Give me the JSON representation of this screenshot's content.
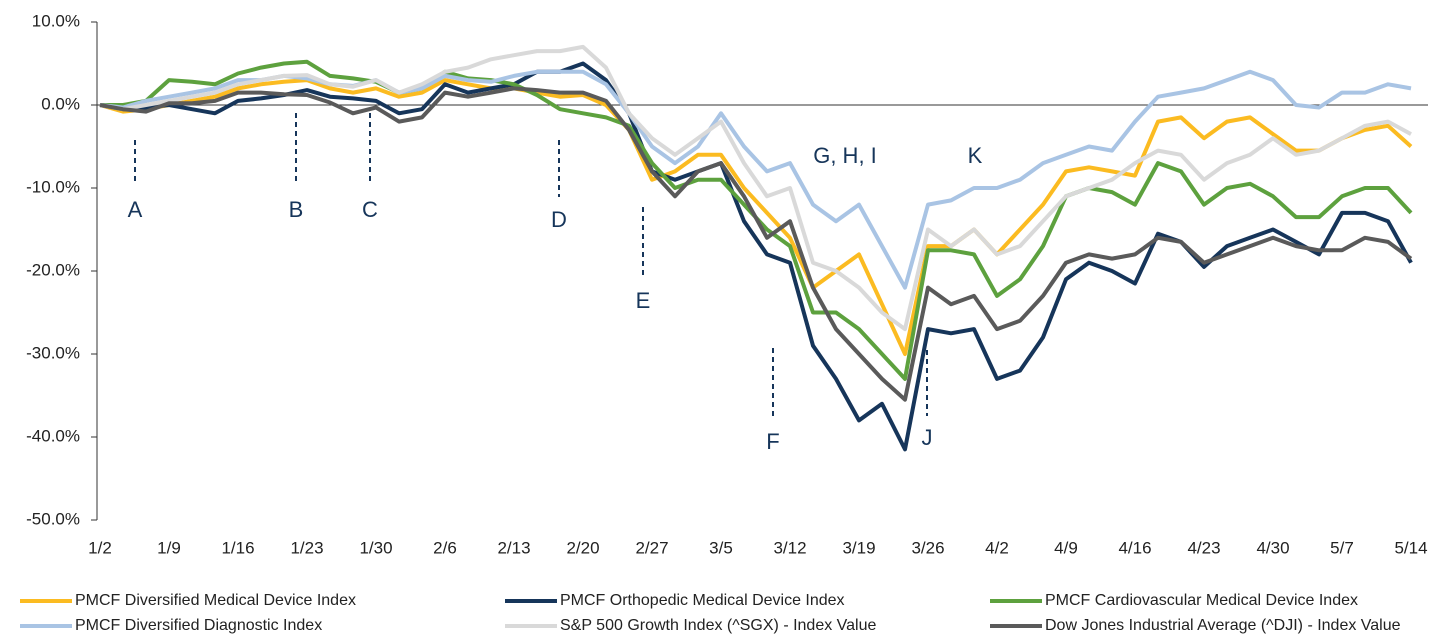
{
  "chart_data": {
    "type": "line",
    "categories": [
      "1/2",
      null,
      null,
      "1/9",
      null,
      null,
      "1/16",
      null,
      null,
      "1/23",
      null,
      null,
      "1/30",
      null,
      null,
      "2/6",
      null,
      null,
      "2/13",
      null,
      null,
      "2/20",
      null,
      null,
      "2/27",
      null,
      null,
      "3/5",
      null,
      null,
      "3/12",
      null,
      null,
      "3/19",
      null,
      null,
      "3/26",
      null,
      null,
      "4/2",
      null,
      null,
      "4/9",
      null,
      null,
      "4/16",
      null,
      null,
      "4/23",
      null,
      null,
      "4/30",
      null,
      null,
      "5/7",
      null,
      null,
      "5/14"
    ],
    "series": [
      {
        "name": "PMCF Diversified Medical Device Index",
        "color": "#fbbb21",
        "values": [
          0,
          -0.8,
          -0.5,
          0,
          0.5,
          1,
          2,
          2.5,
          2.8,
          3,
          2,
          1.5,
          2,
          1,
          1.5,
          3,
          2.5,
          2,
          2,
          1.5,
          1,
          1.2,
          0,
          -3,
          -9,
          -8,
          -6,
          -6,
          -10,
          -13,
          -16,
          -22,
          -20,
          -18,
          -24,
          -30,
          -17,
          -17,
          -15,
          -18,
          -15,
          -12,
          -8,
          -7.5,
          -8,
          -8.5,
          -2,
          -1.5,
          -4,
          -2,
          -1.5,
          -3.5,
          -5.5,
          -5.5,
          -4,
          -3,
          -2.5,
          -5
        ]
      },
      {
        "name": "PMCF Orthopedic Medical Device Index",
        "color": "#16355a",
        "values": [
          0,
          -0.5,
          -0.3,
          0,
          -0.5,
          -1,
          0.5,
          0.8,
          1.2,
          1.8,
          1,
          0.8,
          0.5,
          -1,
          -0.5,
          2.5,
          1.5,
          2,
          2.5,
          4,
          4,
          5,
          3,
          -1,
          -8,
          -9,
          -8,
          -7,
          -14,
          -18,
          -19,
          -29,
          -33,
          -38,
          -36,
          -41.5,
          -27,
          -27.5,
          -27,
          -33,
          -32,
          -28,
          -21,
          -19,
          -20,
          -21.5,
          -15.5,
          -16.5,
          -19.5,
          -17,
          -16,
          -15,
          -16.5,
          -18,
          -13,
          -13,
          -14,
          -19
        ]
      },
      {
        "name": "PMCF Cardiovascular Medical Device Index",
        "color": "#5da13e",
        "values": [
          0,
          0,
          0.5,
          3,
          2.8,
          2.5,
          3.8,
          4.5,
          5,
          5.2,
          3.5,
          3.2,
          2.8,
          1.5,
          2,
          4,
          3.2,
          3,
          2.5,
          1.2,
          -0.5,
          -1,
          -1.5,
          -2.5,
          -7,
          -10,
          -9,
          -9,
          -12,
          -15,
          -17,
          -25,
          -25,
          -27,
          -30,
          -33,
          -17.5,
          -17.5,
          -18,
          -23,
          -21,
          -17,
          -11,
          -10,
          -10.5,
          -12,
          -7,
          -8,
          -12,
          -10,
          -9.5,
          -11,
          -13.5,
          -13.5,
          -11,
          -10,
          -10,
          -13
        ]
      },
      {
        "name": "PMCF Diversified Diagnostic Index",
        "color": "#a9c4e4",
        "values": [
          0,
          -0.3,
          0.5,
          1,
          1.5,
          2,
          3,
          3,
          3.5,
          3.2,
          2.5,
          2.3,
          3,
          1.5,
          2,
          3.5,
          3,
          2.8,
          3.5,
          4,
          4,
          4,
          2.5,
          -1,
          -5,
          -7,
          -5,
          -1,
          -5,
          -8,
          -7,
          -12,
          -14,
          -12,
          -17,
          -22,
          -12,
          -11.5,
          -10,
          -10,
          -9,
          -7,
          -6,
          -5,
          -5.5,
          -2,
          1,
          1.5,
          2,
          3,
          4,
          3,
          0,
          -0.3,
          1.5,
          1.5,
          2.5,
          2
        ]
      },
      {
        "name": "S&P 500 Growth Index (^SGX) - Index Value",
        "color": "#d9d9d9",
        "values": [
          0,
          -0.5,
          0,
          0.5,
          1,
          1.5,
          2.5,
          3,
          3.5,
          3.6,
          2.5,
          2.2,
          3,
          1.5,
          2.5,
          4,
          4.5,
          5.5,
          6,
          6.5,
          6.5,
          7,
          4.5,
          -1,
          -4,
          -6,
          -4,
          -2,
          -7,
          -11,
          -10,
          -19,
          -20,
          -22,
          -25,
          -27,
          -15,
          -17,
          -15,
          -18,
          -17,
          -14,
          -11,
          -10,
          -9,
          -7,
          -5.5,
          -6,
          -9,
          -7,
          -6,
          -4,
          -6,
          -5.5,
          -4,
          -2.5,
          -2,
          -3.5
        ]
      },
      {
        "name": "Dow Jones Industrial Average (^DJI) - Index Value",
        "color": "#5a5a5a",
        "values": [
          0,
          -0.5,
          -0.8,
          0.2,
          0.2,
          0.5,
          1.5,
          1.5,
          1.3,
          1.2,
          0.3,
          -1,
          -0.3,
          -2,
          -1.5,
          1.5,
          1,
          1.5,
          2,
          1.8,
          1.5,
          1.5,
          0.5,
          -3,
          -8,
          -11,
          -8,
          -7,
          -11,
          -16,
          -14,
          -22,
          -27,
          -30,
          -33,
          -35.5,
          -22,
          -24,
          -23,
          -27,
          -26,
          -23,
          -19,
          -18,
          -18.5,
          -18,
          -16,
          -16.5,
          -19,
          -18,
          -17,
          -16,
          -17,
          -17.5,
          -17.5,
          -16,
          -16.5,
          -18.5
        ]
      }
    ],
    "ylim": [
      -50,
      10
    ],
    "yticks": [
      {
        "value": -50,
        "label": "-50.0%"
      },
      {
        "value": -40,
        "label": "-40.0%"
      },
      {
        "value": -30,
        "label": "-30.0%"
      },
      {
        "value": -20,
        "label": "-20.0%"
      },
      {
        "value": -10,
        "label": "-10.0%"
      },
      {
        "value": 0,
        "label": "0.0%"
      },
      {
        "value": 10,
        "label": "10.0%"
      }
    ],
    "annotations": [
      "A",
      "B",
      "C",
      "D",
      "E",
      "F",
      "G, H, I",
      "J",
      "K"
    ],
    "legend": "bottom"
  }
}
